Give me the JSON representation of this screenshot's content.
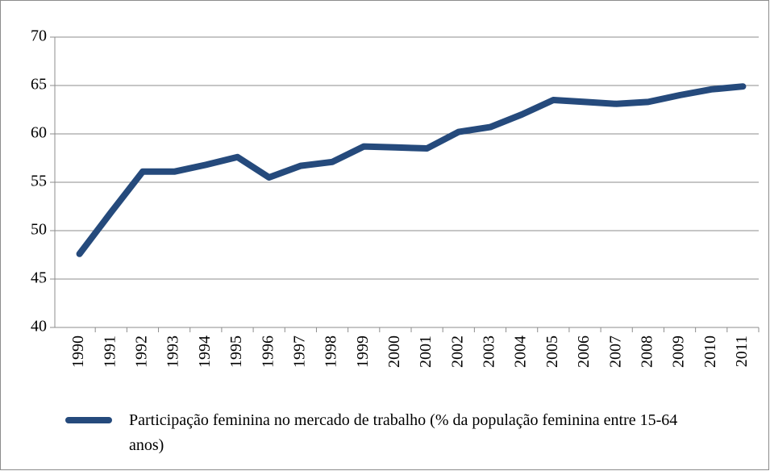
{
  "chart_data": {
    "type": "line",
    "categories": [
      "1990",
      "1991",
      "1992",
      "1993",
      "1994",
      "1995",
      "1996",
      "1997",
      "1998",
      "1999",
      "2000",
      "2001",
      "2002",
      "2003",
      "2004",
      "2005",
      "2006",
      "2007",
      "2008",
      "2009",
      "2010",
      "2011"
    ],
    "series": [
      {
        "name": "Participação feminina no mercado de trabalho (% da população feminina entre 15-64 anos)",
        "color": "#254a7c",
        "values": [
          47.6,
          51.9,
          56.1,
          56.1,
          56.8,
          57.6,
          55.5,
          56.7,
          57.1,
          58.7,
          58.6,
          58.5,
          60.2,
          60.7,
          62.0,
          63.5,
          63.3,
          63.1,
          63.3,
          64.0,
          64.6,
          64.9
        ]
      }
    ],
    "ylim": [
      40,
      70
    ],
    "yticks": [
      40,
      45,
      50,
      55,
      60,
      65,
      70
    ],
    "grid": true
  }
}
